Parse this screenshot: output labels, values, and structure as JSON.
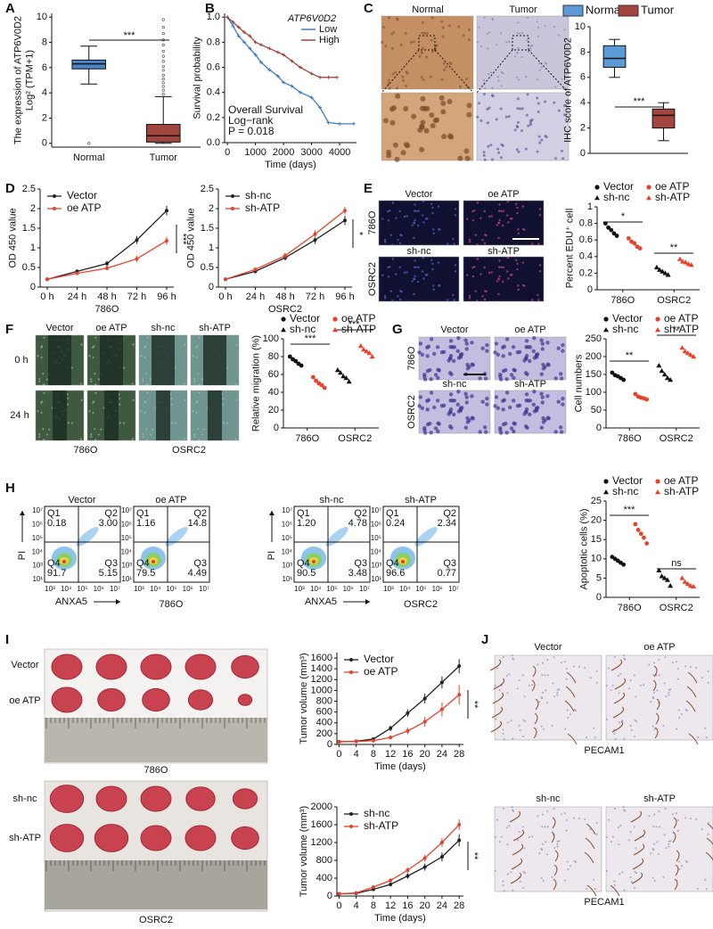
{
  "panel_labels": [
    "A",
    "B",
    "C",
    "D",
    "E",
    "F",
    "G",
    "H",
    "I",
    "J"
  ],
  "images": {
    "C": [
      "Normal",
      "Tumor"
    ],
    "E": [
      "Vector",
      "oe ATP",
      "sh-nc",
      "sh-ATP",
      "786O",
      "OSRC2"
    ],
    "F": [
      "Vector",
      "oe ATP",
      "sh-nc",
      "sh-ATP",
      "0 h",
      "24 h",
      "786O",
      "OSRC2"
    ],
    "G": [
      "Vector",
      "oe ATP",
      "sh-nc",
      "sh-ATP",
      "786O",
      "OSRC2"
    ],
    "I": [
      "Vector",
      "oe ATP",
      "786O",
      "sh-nc",
      "sh-ATP",
      "OSRC2"
    ],
    "J": [
      "Vector",
      "oe ATP",
      "PECAM1",
      "sh-nc",
      "sh-ATP",
      "PECAM1"
    ]
  },
  "flow": {
    "x_label": "ANXA5",
    "y_label": "PI",
    "xticks": [
      "10³",
      "10⁴",
      "10⁵",
      "10⁶",
      "10⁷"
    ],
    "yticks": [
      "10¹",
      "10³",
      "10⁴",
      "10⁵",
      "10⁶",
      "10⁷"
    ],
    "cell_lines": [
      "786O",
      "OSRC2"
    ],
    "plots": [
      {
        "title": "Vector",
        "quadrants": [
          {
            "name": "Q1",
            "value": "0.18"
          },
          {
            "name": "Q2",
            "value": "3.00"
          },
          {
            "name": "Q3",
            "value": "5.15"
          },
          {
            "name": "Q4",
            "value": "91.7"
          }
        ]
      },
      {
        "title": "oe ATP",
        "quadrants": [
          {
            "name": "Q1",
            "value": "1.16"
          },
          {
            "name": "Q2",
            "value": "14.8"
          },
          {
            "name": "Q3",
            "value": "4.49"
          },
          {
            "name": "Q4",
            "value": "79.5"
          }
        ]
      },
      {
        "title": "sh-nc",
        "quadrants": [
          {
            "name": "Q1",
            "value": "1.20"
          },
          {
            "name": "Q2",
            "value": "4.78"
          },
          {
            "name": "Q3",
            "value": "3.48"
          },
          {
            "name": "Q4",
            "value": "90.5"
          }
        ]
      },
      {
        "title": "sh-ATP",
        "quadrants": [
          {
            "name": "Q1",
            "value": "0.24"
          },
          {
            "name": "Q2",
            "value": "2.34"
          },
          {
            "name": "Q3",
            "value": "0.77"
          },
          {
            "name": "Q4",
            "value": "96.6"
          }
        ]
      }
    ]
  },
  "chart_data": [
    {
      "type": "box",
      "ylabel": [
        "The expression of ATP6V0D2",
        "Log² (TPM+1)"
      ],
      "categories": [
        "Normal",
        "Tumor"
      ],
      "boxes": [
        {
          "color": "#4a86c5",
          "q1": 5.9,
          "median": 6.3,
          "q3": 6.6,
          "whisker_low": 4.7,
          "whisker_high": 7.7,
          "outliers": [
            0
          ]
        },
        {
          "color": "#a3453f",
          "q1": 0.1,
          "median": 0.6,
          "q3": 1.5,
          "whisker_low": 0,
          "whisker_high": 3.7,
          "outliers": [
            3.9,
            4.2,
            4.5,
            4.8,
            5.1,
            5.4,
            5.8,
            6.1,
            6.5,
            6.9,
            7.3,
            7.8,
            8.2,
            8.7,
            9.2,
            9.8
          ]
        }
      ],
      "ylim": [
        -0.3,
        10.3
      ],
      "yticks": [
        0,
        2,
        4,
        6,
        8,
        10
      ],
      "annotations": [
        "***"
      ]
    },
    {
      "type": "km",
      "ylabel": [
        "Survival probability"
      ],
      "xlabel": "Time (days)",
      "legend_title": "ATP6V0D2",
      "series": [
        {
          "name": "Low",
          "color": "#3b7dc4",
          "x": [
            0,
            200,
            400,
            600,
            800,
            1000,
            1200,
            1500,
            1800,
            2000,
            2300,
            2600,
            3000,
            3300,
            3600,
            4000,
            4500
          ],
          "values": [
            1,
            0.93,
            0.85,
            0.8,
            0.75,
            0.7,
            0.64,
            0.58,
            0.53,
            0.48,
            0.45,
            0.4,
            0.36,
            0.28,
            0.16,
            0.15,
            0.15
          ]
        },
        {
          "name": "High",
          "color": "#a3453f",
          "x": [
            0,
            200,
            400,
            600,
            800,
            1000,
            1200,
            1500,
            1800,
            2000,
            2300,
            2600,
            3000,
            3300,
            3600,
            3900
          ],
          "values": [
            1,
            0.96,
            0.92,
            0.88,
            0.85,
            0.8,
            0.78,
            0.75,
            0.72,
            0.7,
            0.65,
            0.6,
            0.55,
            0.52,
            0.52,
            0.52
          ]
        }
      ],
      "notes": [
        "Overall Survival",
        "Log−rank",
        "P = 0.018"
      ],
      "xlim": [
        -100,
        4600
      ],
      "xticks": [
        0,
        1000,
        2000,
        3000,
        4000
      ],
      "ylim": [
        0,
        1.03
      ],
      "yticks": [
        {
          "value": 0,
          "label": "0.0"
        },
        0.2,
        0.4,
        0.6,
        0.8,
        {
          "value": 1,
          "label": "1.0"
        }
      ]
    },
    {
      "type": "box",
      "ylabel": [
        "IHC score of ATP6V0D2"
      ],
      "categories": [
        "Normal",
        "Tumor"
      ],
      "legend": "top",
      "boxes": [
        {
          "color": "#5b9bd5",
          "q1": 6.8,
          "median": 7.5,
          "q3": 8.5,
          "whisker_low": 6,
          "whisker_high": 9,
          "outliers": []
        },
        {
          "color": "#a3453f",
          "q1": 2,
          "median": 3,
          "q3": 3.5,
          "whisker_low": 1,
          "whisker_high": 4,
          "outliers": []
        }
      ],
      "ylim": [
        0,
        10
      ],
      "yticks": [
        0,
        2,
        4,
        6,
        8,
        10
      ],
      "annotations": [
        "***"
      ]
    },
    {
      "type": "line",
      "ylabel": [
        "OD 450 value"
      ],
      "xlabel": "786O",
      "categories": [
        "0 h",
        "24 h",
        "48 h",
        "72 h",
        "96 h"
      ],
      "series": [
        {
          "name": "Vector",
          "color": "#222222",
          "values": [
            0.2,
            0.4,
            0.6,
            1.2,
            1.95
          ],
          "errors": [
            0.03,
            0.05,
            0.07,
            0.1,
            0.12
          ]
        },
        {
          "name": "oe ATP",
          "color": "#e8412c",
          "values": [
            0.2,
            0.35,
            0.48,
            0.72,
            1.18
          ],
          "errors": [
            0.03,
            0.04,
            0.05,
            0.08,
            0.1
          ]
        }
      ],
      "ylim": [
        0,
        2.5
      ],
      "yticks": [
        0,
        0.5,
        1,
        1.5,
        2,
        2.5
      ],
      "annotations": [
        "***"
      ]
    },
    {
      "type": "line",
      "ylabel": [
        "OD 450 value"
      ],
      "xlabel": "OSRC2",
      "categories": [
        "0 h",
        "24 h",
        "48 h",
        "72 h",
        "96 h"
      ],
      "series": [
        {
          "name": "sh-nc",
          "color": "#222222",
          "values": [
            0.2,
            0.4,
            0.75,
            1.2,
            1.7
          ],
          "errors": [
            0.03,
            0.05,
            0.07,
            0.1,
            0.12
          ]
        },
        {
          "name": "sh-ATP",
          "color": "#e8412c",
          "values": [
            0.2,
            0.45,
            0.8,
            1.35,
            1.95
          ],
          "errors": [
            0.03,
            0.05,
            0.07,
            0.1,
            0.1
          ]
        }
      ],
      "ylim": [
        0,
        2.5
      ],
      "yticks": [
        0,
        0.5,
        1,
        1.5,
        2,
        2.5
      ],
      "annotations": [
        "*"
      ]
    },
    {
      "type": "dot",
      "ylabel": [
        "Percent EDU⁺ cell"
      ],
      "categories": [
        "786O",
        "OSRC2"
      ],
      "series": [
        {
          "name": "Vector",
          "color": "#111111",
          "marker": "circle",
          "values": [
            [
              0.8,
              0.75,
              0.72,
              0.68,
              0.65
            ],
            null
          ]
        },
        {
          "name": "sh-nc",
          "color": "#111111",
          "marker": "triangle",
          "values": [
            null,
            [
              0.27,
              0.24,
              0.22,
              0.2,
              0.18
            ]
          ]
        },
        {
          "name": "oe ATP",
          "color": "#e8412c",
          "marker": "circle",
          "values": [
            [
              0.62,
              0.58,
              0.56,
              0.52,
              0.5
            ],
            null
          ]
        },
        {
          "name": "sh-ATP",
          "color": "#e8412c",
          "marker": "triangle",
          "values": [
            null,
            [
              0.37,
              0.34,
              0.33,
              0.31,
              0.3
            ]
          ]
        }
      ],
      "ylim": [
        0,
        1
      ],
      "yticks": [
        0,
        0.2,
        0.4,
        0.6,
        0.8,
        1
      ],
      "annotations": [
        "*",
        "**"
      ]
    },
    {
      "type": "dot",
      "ylabel": [
        "Relative migration (%)"
      ],
      "categories": [
        "786O",
        "OSRC2"
      ],
      "series": [
        {
          "name": "Vector",
          "color": "#111111",
          "marker": "circle",
          "values": [
            [
              80,
              77,
              75,
              72,
              70
            ],
            null
          ]
        },
        {
          "name": "sh-nc",
          "color": "#111111",
          "marker": "triangle",
          "values": [
            null,
            [
              65,
              62,
              58,
              56,
              52
            ]
          ]
        },
        {
          "name": "oe ATP",
          "color": "#e8412c",
          "marker": "circle",
          "values": [
            [
              57,
              53,
              50,
              48,
              45
            ],
            null
          ]
        },
        {
          "name": "sh-ATP",
          "color": "#e8412c",
          "marker": "triangle",
          "values": [
            null,
            [
              92,
              88,
              86,
              84,
              80
            ]
          ]
        }
      ],
      "ylim": [
        0,
        100
      ],
      "yticks": [
        0,
        20,
        40,
        60,
        80,
        100
      ],
      "annotations": [
        "***",
        "***"
      ]
    },
    {
      "type": "dot",
      "ylabel": [
        "Cell numbers"
      ],
      "categories": [
        "786O",
        "OSRC2"
      ],
      "series": [
        {
          "name": "Vector",
          "color": "#111111",
          "marker": "circle",
          "values": [
            [
              155,
              148,
              145,
              140,
              135
            ],
            null
          ]
        },
        {
          "name": "sh-nc",
          "color": "#111111",
          "marker": "triangle",
          "values": [
            null,
            [
              175,
              160,
              150,
              140,
              135
            ]
          ]
        },
        {
          "name": "oe ATP",
          "color": "#e8412c",
          "marker": "circle",
          "values": [
            [
              95,
              88,
              85,
              83,
              80
            ],
            null
          ]
        },
        {
          "name": "sh-ATP",
          "color": "#e8412c",
          "marker": "triangle",
          "values": [
            null,
            [
              225,
              215,
              210,
              205,
              200
            ]
          ]
        }
      ],
      "ylim": [
        0,
        250
      ],
      "yticks": [
        0,
        50,
        100,
        150,
        200,
        250
      ],
      "annotations": [
        "**",
        "**"
      ]
    },
    {
      "type": "dot",
      "ylabel": [
        "Apoptotic cells (%)"
      ],
      "categories": [
        "786O",
        "OSRC2"
      ],
      "series": [
        {
          "name": "Vector",
          "color": "#111111",
          "marker": "circle",
          "values": [
            [
              10.5,
              10,
              9.5,
              9,
              8.5
            ],
            null
          ]
        },
        {
          "name": "sh-nc",
          "color": "#111111",
          "marker": "triangle",
          "values": [
            null,
            [
              7,
              5.5,
              5,
              4.5,
              3
            ]
          ]
        },
        {
          "name": "oe ATP",
          "color": "#e8412c",
          "marker": "circle",
          "values": [
            [
              19,
              17.5,
              16.5,
              15.5,
              14
            ],
            null
          ]
        },
        {
          "name": "sh-ATP",
          "color": "#e8412c",
          "marker": "triangle",
          "values": [
            null,
            [
              5,
              4,
              3.5,
              3,
              2.8
            ]
          ]
        }
      ],
      "ylim": [
        0,
        25
      ],
      "yticks": [
        0,
        5,
        10,
        15,
        20,
        25
      ],
      "annotations": [
        "***",
        "ns"
      ]
    },
    {
      "type": "line",
      "ylabel": [
        "Tumor volume (mm³)"
      ],
      "xlabel": "Time (days)",
      "x": [
        0,
        4,
        8,
        12,
        16,
        20,
        24,
        28
      ],
      "series": [
        {
          "name": "Vector",
          "color": "#222222",
          "values": [
            50,
            60,
            100,
            300,
            580,
            850,
            1150,
            1450
          ],
          "errors": [
            10,
            15,
            25,
            50,
            70,
            90,
            110,
            130
          ]
        },
        {
          "name": "oe ATP",
          "color": "#e8412c",
          "values": [
            50,
            55,
            70,
            130,
            250,
            420,
            650,
            920
          ],
          "errors": [
            10,
            12,
            20,
            35,
            60,
            90,
            130,
            180
          ]
        }
      ],
      "xlim": [
        -0.5,
        29
      ],
      "xticks": [
        0,
        4,
        8,
        12,
        16,
        20,
        24,
        28
      ],
      "ylim": [
        0,
        1700
      ],
      "yticks": [
        0,
        200,
        400,
        600,
        800,
        1000,
        1200,
        1400,
        1600
      ],
      "annotations": [
        "**"
      ]
    },
    {
      "type": "line",
      "ylabel": [
        "Tumor volume (mm³)"
      ],
      "xlabel": "Time (days)",
      "x": [
        0,
        4,
        8,
        12,
        16,
        20,
        24,
        28
      ],
      "series": [
        {
          "name": "sh-nc",
          "color": "#222222",
          "values": [
            50,
            60,
            150,
            260,
            450,
            650,
            880,
            1250
          ],
          "errors": [
            10,
            15,
            25,
            45,
            60,
            80,
            100,
            140
          ]
        },
        {
          "name": "sh-ATP",
          "color": "#e8412c",
          "values": [
            50,
            70,
            200,
            350,
            580,
            850,
            1200,
            1600
          ],
          "errors": [
            10,
            15,
            25,
            45,
            60,
            80,
            100,
            120
          ]
        }
      ],
      "xlim": [
        -0.5,
        29
      ],
      "xticks": [
        0,
        4,
        8,
        12,
        16,
        20,
        24,
        28
      ],
      "ylim": [
        0,
        2000
      ],
      "yticks": [
        0,
        400,
        800,
        1200,
        1600,
        2000
      ],
      "annotations": [
        "**"
      ]
    }
  ]
}
